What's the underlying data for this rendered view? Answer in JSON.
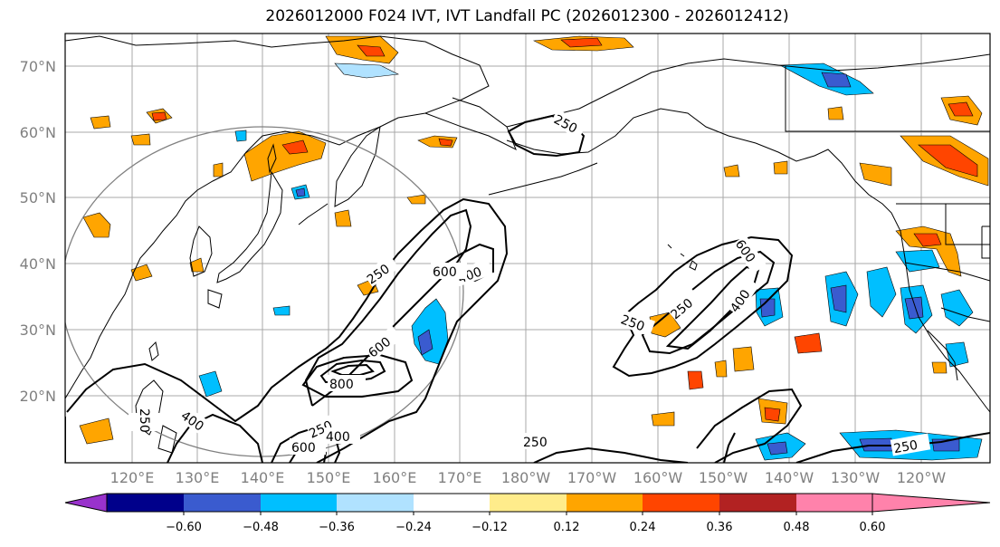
{
  "title": "2026012000 F024 IVT, IVT Landfall PC (2026012300 - 2026012412)",
  "map": {
    "lat_labels": [
      "70°N",
      "60°N",
      "50°N",
      "40°N",
      "30°N",
      "20°N"
    ],
    "lon_labels": [
      "120°E",
      "130°E",
      "140°E",
      "150°E",
      "160°E",
      "170°E",
      "180°W",
      "170°W",
      "160°W",
      "150°W",
      "140°W",
      "130°W",
      "120°W"
    ],
    "contour_labels": [
      "250",
      "250",
      "250",
      "250",
      "250",
      "250",
      "250",
      "250",
      "400",
      "400",
      "400",
      "400",
      "600",
      "600",
      "600",
      "600",
      "800"
    ]
  },
  "colorbar": {
    "colors": [
      "#9932cc",
      "#00008b",
      "#3a5bcf",
      "#00bfff",
      "#b0e2ff",
      "#ffffff",
      "#ffec8b",
      "#ffa500",
      "#ff4500",
      "#b22222",
      "#ff82ab"
    ],
    "ticks": [
      "−0.60",
      "−0.48",
      "−0.36",
      "−0.24",
      "−0.12",
      "0.12",
      "0.24",
      "0.36",
      "0.48",
      "0.60"
    ]
  }
}
